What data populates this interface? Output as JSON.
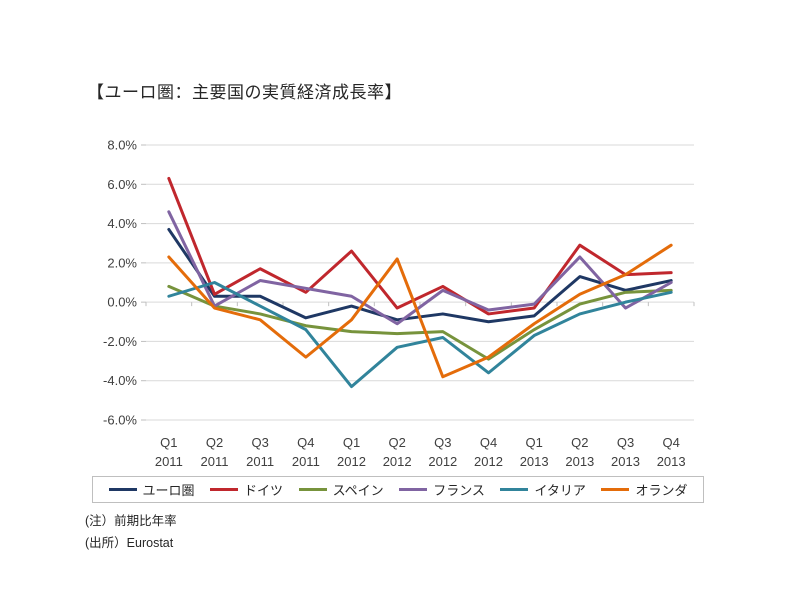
{
  "title": "【ユーロ圏：主要国の実質経済成長率】",
  "notes": {
    "line1": "(注）前期比年率",
    "line2": "(出所）Eurostat"
  },
  "chart_data": {
    "type": "line",
    "title": "【ユーロ圏：主要国の実質経済成長率】",
    "ylabel": "",
    "xlabel": "",
    "ylim": [
      -6,
      8
    ],
    "grid": true,
    "legend_position": "bottom",
    "y_ticks": [
      {
        "v": 8,
        "label": "8.0%"
      },
      {
        "v": 6,
        "label": "6.0%"
      },
      {
        "v": 4,
        "label": "4.0%"
      },
      {
        "v": 2,
        "label": "2.0%"
      },
      {
        "v": 0,
        "label": "0.0%"
      },
      {
        "v": -2,
        "label": "-2.0%"
      },
      {
        "v": -4,
        "label": "-4.0%"
      },
      {
        "v": -6,
        "label": "-6.0%"
      }
    ],
    "categories_quarter": [
      "Q1",
      "Q2",
      "Q3",
      "Q4",
      "Q1",
      "Q2",
      "Q3",
      "Q4",
      "Q1",
      "Q2",
      "Q3",
      "Q4"
    ],
    "categories_year": [
      "2011",
      "2011",
      "2011",
      "2011",
      "2012",
      "2012",
      "2012",
      "2012",
      "2013",
      "2013",
      "2013",
      "2013"
    ],
    "series": [
      {
        "key": "eurozone",
        "name": "ユーロ圏",
        "color": "#1F3864",
        "values": [
          3.7,
          0.3,
          0.3,
          -0.8,
          -0.2,
          -0.9,
          -0.6,
          -1.0,
          -0.7,
          1.3,
          0.6,
          1.1
        ]
      },
      {
        "key": "germany",
        "name": "ドイツ",
        "color": "#C0272D",
        "values": [
          6.3,
          0.4,
          1.7,
          0.5,
          2.6,
          -0.3,
          0.8,
          -0.6,
          -0.3,
          2.9,
          1.4,
          1.5
        ]
      },
      {
        "key": "spain",
        "name": "スペイン",
        "color": "#77933C",
        "values": [
          0.8,
          -0.2,
          -0.6,
          -1.2,
          -1.5,
          -1.6,
          -1.5,
          -2.9,
          -1.4,
          -0.1,
          0.5,
          0.6
        ]
      },
      {
        "key": "france",
        "name": "フランス",
        "color": "#8064A2",
        "values": [
          4.6,
          -0.2,
          1.1,
          0.7,
          0.3,
          -1.1,
          0.6,
          -0.4,
          -0.1,
          2.3,
          -0.3,
          1.0
        ]
      },
      {
        "key": "italy",
        "name": "イタリア",
        "color": "#31849B",
        "values": [
          0.3,
          1.0,
          -0.2,
          -1.4,
          -4.3,
          -2.3,
          -1.8,
          -3.6,
          -1.7,
          -0.6,
          0.0,
          0.5
        ]
      },
      {
        "key": "netherlands",
        "name": "オランダ",
        "color": "#E46C0A",
        "values": [
          2.3,
          -0.3,
          -0.9,
          -2.8,
          -0.9,
          2.2,
          -3.8,
          -2.8,
          -1.1,
          0.4,
          1.4,
          2.9
        ]
      }
    ]
  }
}
